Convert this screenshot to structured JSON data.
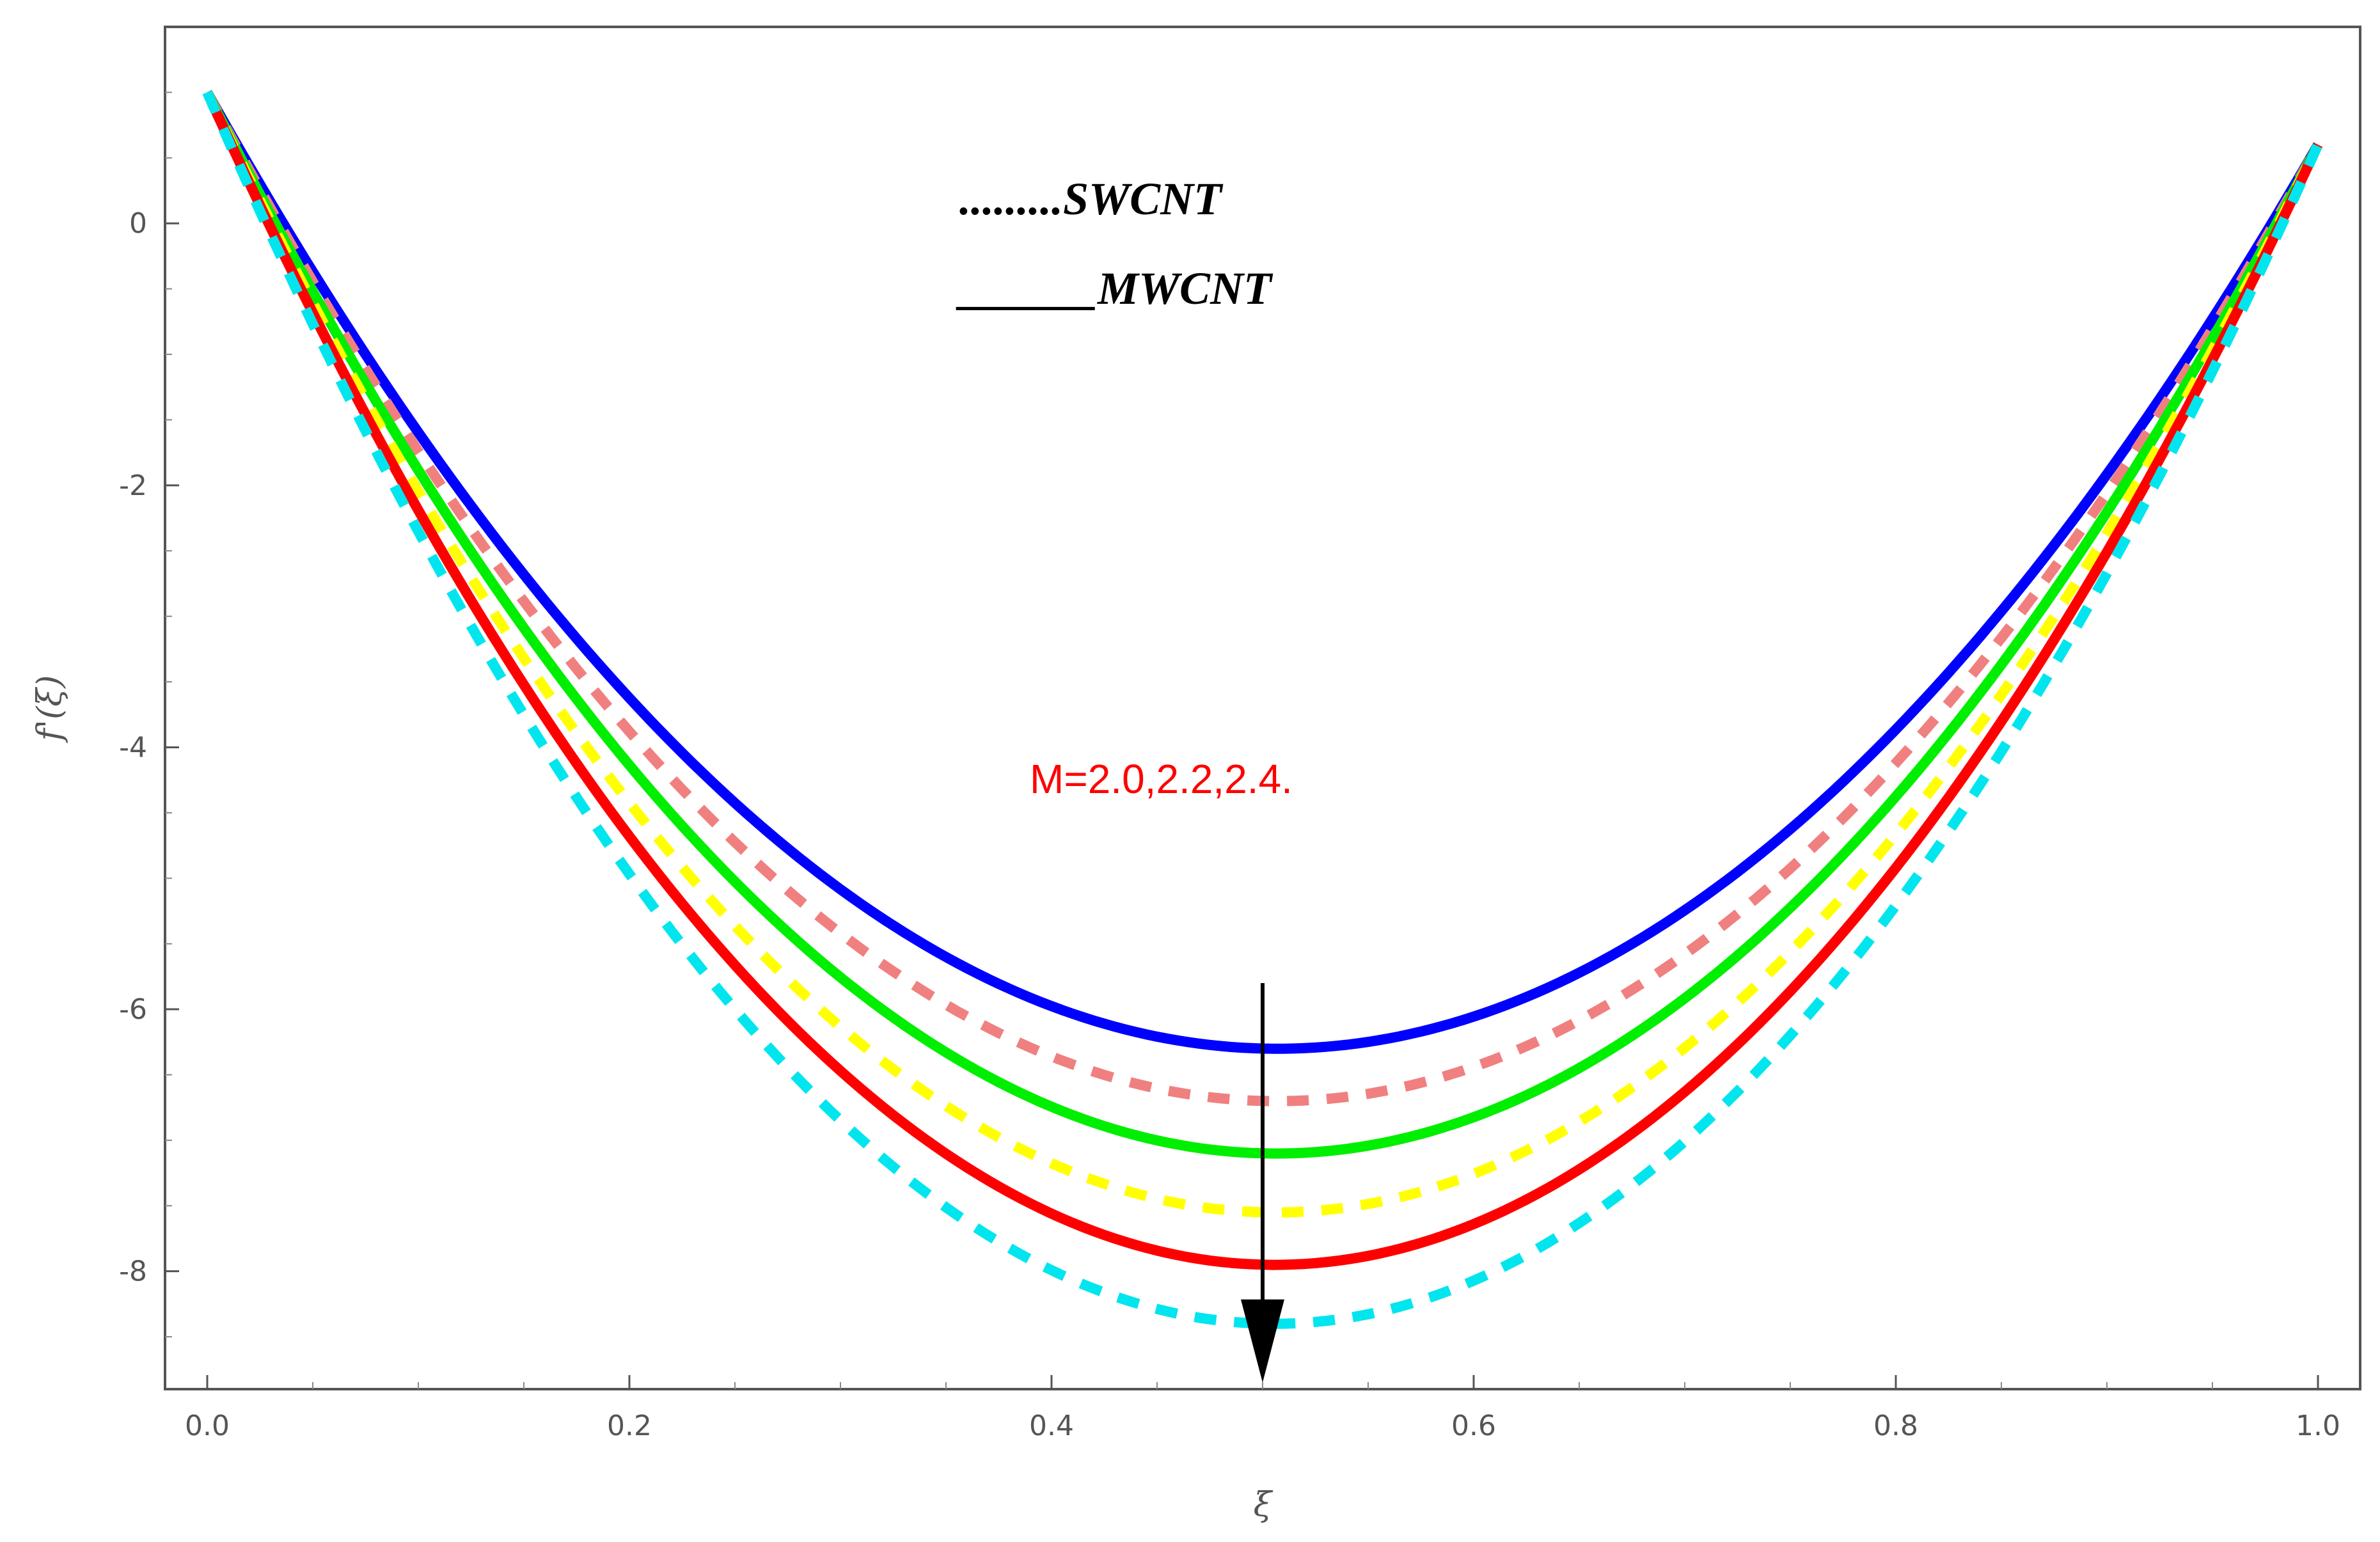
{
  "chart_data": {
    "type": "line",
    "title": "",
    "xlabel": "ξ",
    "ylabel": "f'(ξ)",
    "xlim": [
      -0.02,
      1.02
    ],
    "ylim": [
      -8.9,
      1.5
    ],
    "x_ticks": [
      0.0,
      0.2,
      0.4,
      0.6,
      0.8,
      1.0
    ],
    "x_tick_labels": [
      "0.0",
      "0.2",
      "0.4",
      "0.6",
      "0.8",
      "1.0"
    ],
    "y_ticks": [
      0,
      -2,
      -4,
      -6,
      -8
    ],
    "y_tick_labels": [
      "0",
      "-2",
      "-4",
      "-6",
      "-8"
    ],
    "grid": false,
    "series": [
      {
        "name": "MWCNT, M=2.0",
        "style": "solid",
        "color": "#0000ff",
        "start": 1.0,
        "min": -6.3,
        "end": 0.6
      },
      {
        "name": "SWCNT, M=2.0",
        "style": "dashed",
        "color": "#f08080",
        "start": 1.0,
        "min": -6.7,
        "end": 0.6
      },
      {
        "name": "MWCNT, M=2.2",
        "style": "solid",
        "color": "#00ee00",
        "start": 1.0,
        "min": -7.1,
        "end": 0.6
      },
      {
        "name": "SWCNT, M=2.2",
        "style": "dashed",
        "color": "#ffff00",
        "start": 1.0,
        "min": -7.55,
        "end": 0.6
      },
      {
        "name": "MWCNT, M=2.4",
        "style": "solid",
        "color": "#ff0000",
        "start": 1.0,
        "min": -7.95,
        "end": 0.6
      },
      {
        "name": "SWCNT, M=2.4",
        "style": "dashed",
        "color": "#00e5ee",
        "start": 1.0,
        "min": -8.4,
        "end": 0.6
      }
    ],
    "legend": [
      {
        "text": ".........SWCNT",
        "style": "dotted"
      },
      {
        "text": "______MWCNT",
        "style": "solid"
      }
    ],
    "annotation": {
      "text": "M=2.0,2.2,2.4.",
      "color": "#ff0000",
      "arrow_x": 0.5,
      "arrow_from_y": -5.8,
      "arrow_to_y": -8.85
    }
  }
}
